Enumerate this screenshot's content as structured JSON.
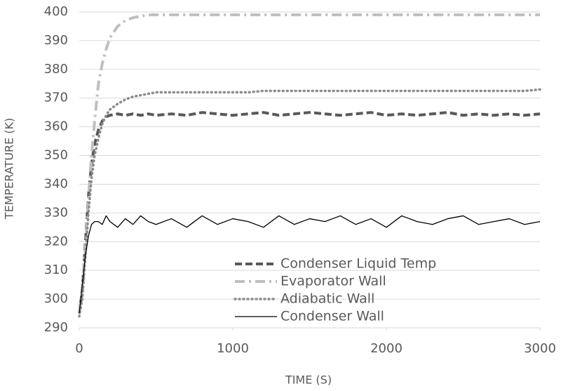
{
  "chart_data": {
    "type": "line",
    "x_label": "TIME (S)",
    "y_label": "TEMPERATURE (K)",
    "x": [
      0,
      20,
      40,
      60,
      80,
      100,
      125,
      150,
      175,
      200,
      250,
      300,
      350,
      400,
      450,
      500,
      600,
      700,
      800,
      900,
      1000,
      1100,
      1200,
      1300,
      1400,
      1500,
      1600,
      1700,
      1800,
      1900,
      2000,
      2100,
      2200,
      2300,
      2400,
      2500,
      2600,
      2700,
      2800,
      2900,
      3000
    ],
    "series": [
      {
        "name": "Condenser Liquid Temp",
        "color": "#595959",
        "style": "dashed",
        "values": [
          295,
          303,
          320,
          336,
          347,
          354,
          359,
          362,
          363.5,
          364,
          364.5,
          364,
          364.5,
          364,
          364.5,
          364,
          364.5,
          364,
          365,
          364.5,
          364,
          364.5,
          365,
          364,
          364.5,
          365,
          364.5,
          364,
          364.5,
          365,
          364,
          364.5,
          364,
          364.5,
          365,
          364,
          364.5,
          364,
          364.5,
          364,
          364.5
        ]
      },
      {
        "name": "Evaporator Wall",
        "color": "#bfbfbf",
        "style": "dash-dot",
        "values": [
          295,
          305,
          318,
          335,
          350,
          362,
          375,
          382,
          387,
          391,
          395,
          397,
          398,
          398.5,
          399,
          399,
          399,
          399,
          399,
          399,
          399,
          399,
          399,
          399,
          399,
          399,
          399,
          399,
          399,
          399,
          399,
          399,
          399,
          399,
          399,
          399,
          399,
          399,
          399,
          399,
          399
        ]
      },
      {
        "name": "Adiabatic Wall",
        "color": "#8c8c8c",
        "style": "dotted",
        "values": [
          294,
          300,
          315,
          330,
          342,
          350,
          356,
          361,
          364,
          366,
          368,
          369.5,
          370.5,
          371,
          371.5,
          372,
          372,
          372,
          372,
          372,
          372,
          372,
          372.5,
          372.5,
          372.5,
          372.5,
          372.5,
          372.5,
          372.5,
          372.5,
          372.5,
          372.5,
          372.5,
          372.5,
          372.5,
          372.5,
          372.5,
          372.5,
          372.5,
          372.5,
          373
        ]
      },
      {
        "name": "Condenser Wall",
        "color": "#000000",
        "style": "solid",
        "values": [
          295,
          305,
          315,
          322,
          326,
          327,
          327,
          326,
          329,
          327,
          325,
          328,
          326,
          329,
          327,
          326,
          328,
          325,
          329,
          326,
          328,
          327,
          325,
          329,
          326,
          328,
          327,
          329,
          326,
          328,
          325,
          329,
          327,
          326,
          328,
          329,
          326,
          327,
          328,
          326,
          327
        ]
      }
    ],
    "xlim": [
      0,
      3000
    ],
    "xticks": [
      0,
      1000,
      2000,
      3000
    ],
    "ylim": [
      290,
      400
    ],
    "yticks": [
      290,
      300,
      310,
      320,
      330,
      340,
      350,
      360,
      370,
      380,
      390,
      400
    ],
    "grid": true
  }
}
